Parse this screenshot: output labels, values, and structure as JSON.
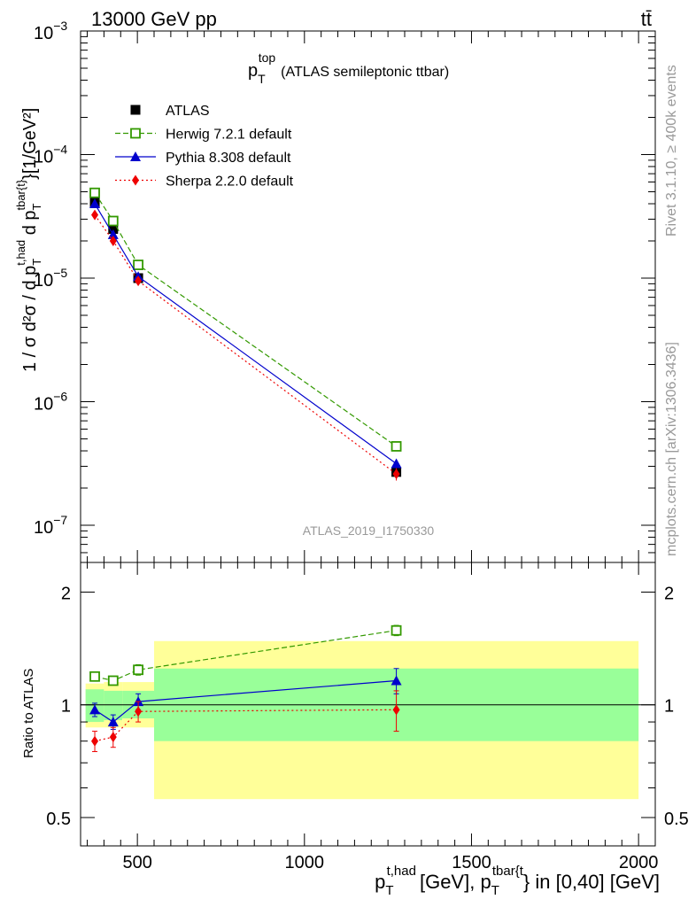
{
  "header": {
    "energy": "13000 GeV pp",
    "process": "tt̄"
  },
  "side_labels": {
    "rivet": "Rivet 3.1.10, ≥ 400k events",
    "mcplots": "mcplots.cern.ch [arXiv:1306.3436]"
  },
  "watermark": "ATLAS_2019_I1750330",
  "colors": {
    "atlas": "#000000",
    "herwig": "#339900",
    "pythia": "#0000cc",
    "sherpa": "#ee0000",
    "band_inner": "#99ff99",
    "band_outer": "#ffff99"
  },
  "chart_data": [
    {
      "type": "scatter",
      "title": "p_T^top (ATLAS semileptonic ttbar)",
      "title_main": "p",
      "title_sub": "T",
      "title_sup": "top",
      "title_rest": "(ATLAS semileptonic ttbar)",
      "ylabel": "1 / σ d²σ / d p_T^{t,had} d p_T^{tbar{t}} [1/GeV²]",
      "yscale": "log",
      "ylim": [
        5e-08,
        0.001
      ],
      "xlim": [
        330,
        2050
      ],
      "y_ticks": [
        {
          "value": 1e-07,
          "label": "10",
          "exp": "−7"
        },
        {
          "value": 1e-06,
          "label": "10",
          "exp": "−6"
        },
        {
          "value": 1e-05,
          "label": "10",
          "exp": "−5"
        },
        {
          "value": 0.0001,
          "label": "10",
          "exp": "−4"
        },
        {
          "value": 0.001,
          "label": "10",
          "exp": "−3"
        }
      ],
      "x": [
        372.5,
        427.5,
        502.5,
        1275
      ],
      "series": [
        {
          "name": "ATLAS",
          "values": [
            4.1e-05,
            2.5e-05,
            1e-05,
            2.7e-07
          ],
          "errors": [
            1e-06,
            8e-07,
            5e-07,
            2e-08
          ]
        },
        {
          "name": "Herwig 7.2.1 default",
          "values": [
            4.9e-05,
            2.9e-05,
            1.28e-05,
            4.35e-07
          ],
          "errors": [
            2e-06,
            1e-06,
            6e-07,
            2e-08
          ]
        },
        {
          "name": "Pythia 8.308 default",
          "values": [
            4e-05,
            2.25e-05,
            1.03e-05,
            3.15e-07
          ],
          "errors": [
            2e-06,
            1e-06,
            5e-07,
            2e-08
          ]
        },
        {
          "name": "Sherpa 2.2.0 default",
          "values": [
            3.25e-05,
            2e-05,
            9.5e-06,
            2.6e-07
          ],
          "errors": [
            2e-06,
            1e-06,
            5e-07,
            3e-08
          ]
        }
      ],
      "legend": "top-left"
    },
    {
      "type": "scatter",
      "ylabel": "Ratio to ATLAS",
      "xlabel": "p_T^{t,had} [GeV], p_T^{tbar{t}} in [0,40] [GeV]",
      "xlabel_parts": {
        "p1": "p",
        "sub1": "T",
        "sup1": "t,had",
        "mid": "[GeV], p",
        "sub2": "T",
        "sup2": "tbar{t",
        "end": "} in [0,40] [GeV]"
      },
      "yscale": "log",
      "ylim": [
        0.42,
        2.4
      ],
      "xlim": [
        330,
        2050
      ],
      "y_ticks": [
        {
          "value": 0.5,
          "label": "0.5"
        },
        {
          "value": 1,
          "label": "1"
        },
        {
          "value": 2,
          "label": "2"
        }
      ],
      "x_ticks": [
        {
          "value": 500,
          "label": "500"
        },
        {
          "value": 1000,
          "label": "1000"
        },
        {
          "value": 1500,
          "label": "1500"
        },
        {
          "value": 2000,
          "label": "2000"
        }
      ],
      "bins": [
        345,
        400,
        455,
        550,
        2000
      ],
      "band_inner": [
        [
          0.9,
          1.1
        ],
        [
          0.91,
          1.09
        ],
        [
          0.92,
          1.09
        ],
        [
          0.8,
          1.25
        ]
      ],
      "band_outer": [
        [
          0.87,
          1.14
        ],
        [
          0.87,
          1.15
        ],
        [
          0.87,
          1.15
        ],
        [
          0.56,
          1.48
        ]
      ],
      "x": [
        372.5,
        427.5,
        502.5,
        1275
      ],
      "series": [
        {
          "name": "Herwig 7.2.1 default",
          "values": [
            1.19,
            1.16,
            1.24,
            1.58
          ],
          "errors": [
            0.03,
            0.03,
            0.04,
            0.05
          ]
        },
        {
          "name": "Pythia 8.308 default",
          "values": [
            0.97,
            0.9,
            1.02,
            1.16
          ],
          "errors": [
            0.04,
            0.04,
            0.05,
            0.09
          ]
        },
        {
          "name": "Sherpa 2.2.0 default",
          "values": [
            0.8,
            0.82,
            0.96,
            0.97
          ],
          "errors": [
            0.05,
            0.05,
            0.06,
            0.12
          ]
        }
      ]
    }
  ]
}
